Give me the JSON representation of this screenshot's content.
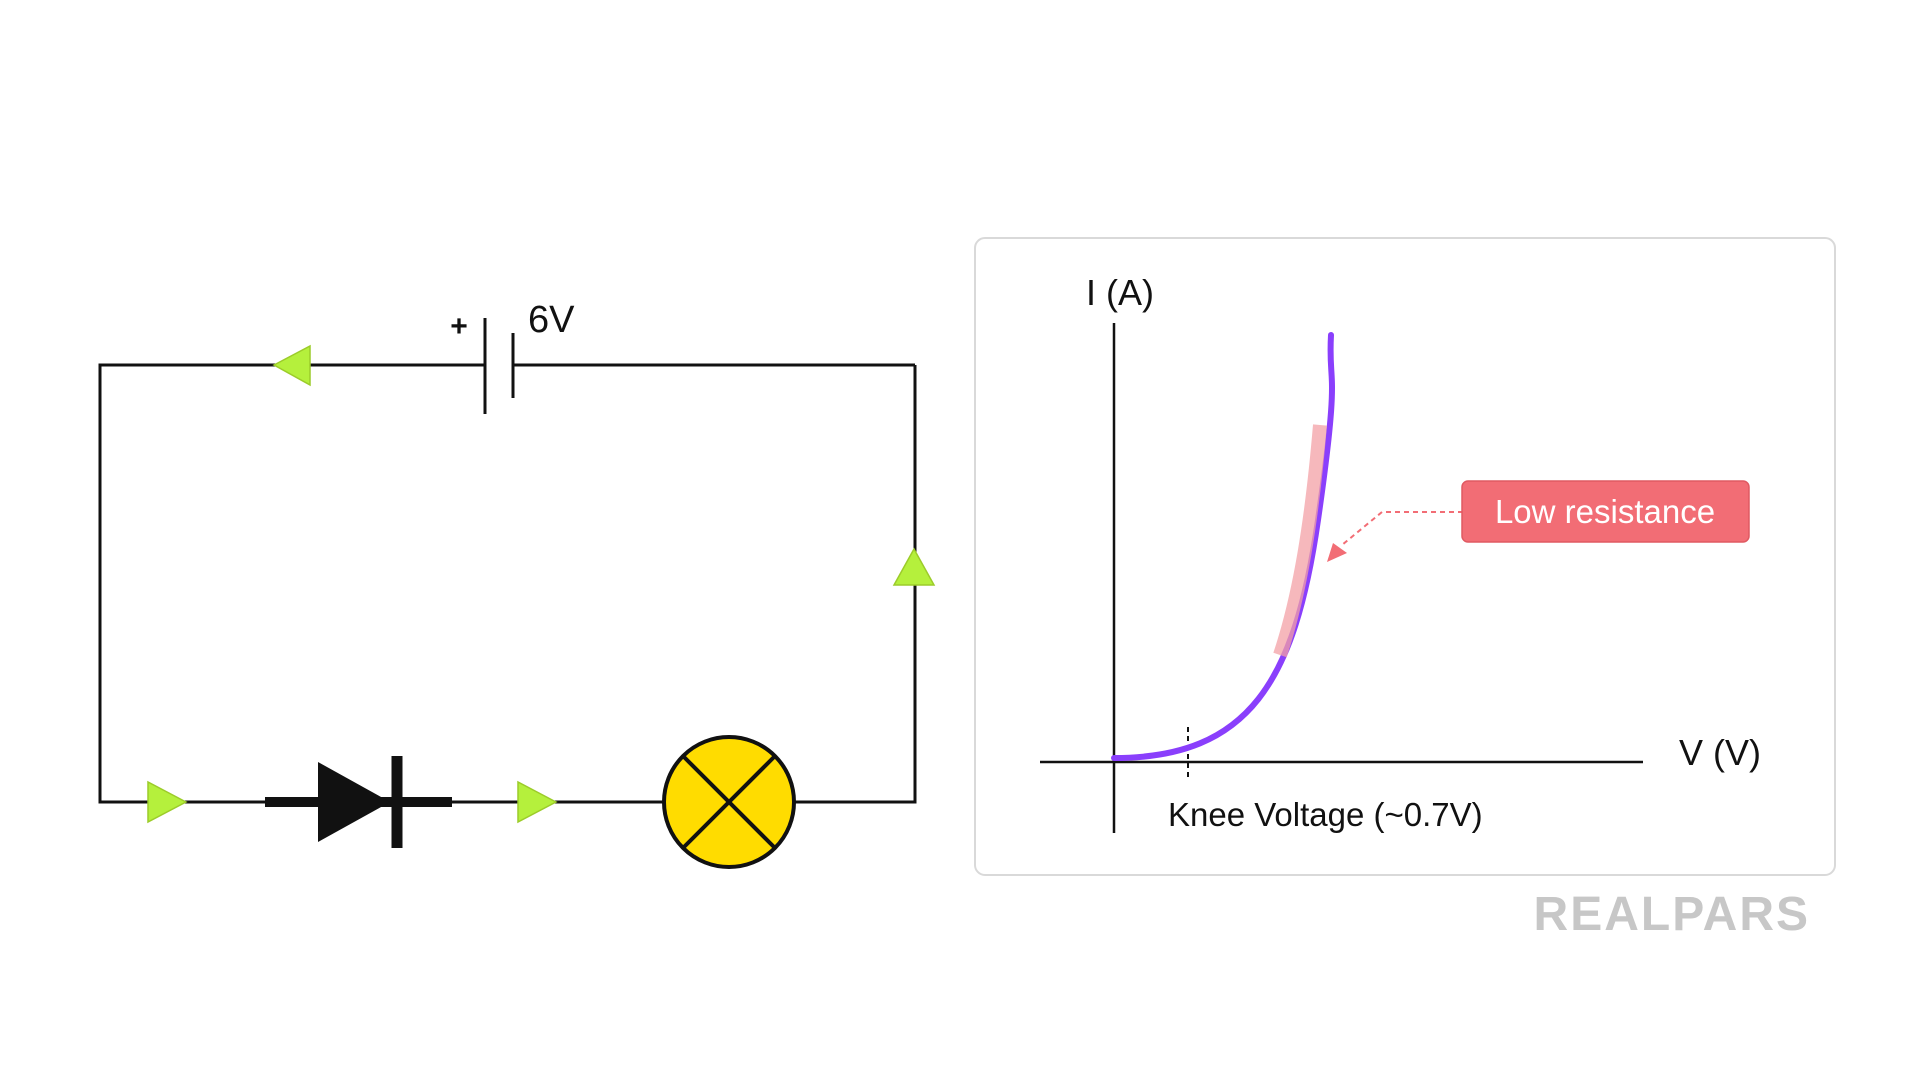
{
  "circuit": {
    "battery_voltage": "6V",
    "battery_polarity": "+"
  },
  "graph": {
    "y_axis_label": "I (A)",
    "x_axis_label": "V (V)",
    "knee_label": "Knee Voltage (~0.7V)",
    "callout_label": "Low resistance"
  },
  "logo": {
    "text": "REALPARS"
  },
  "colors": {
    "curve": "#8a3ffc",
    "highlight": "#f3a0a6",
    "callout_bg": "#f26d75",
    "callout_text": "#ffffff",
    "flow_arrow": "#b5f03c",
    "bulb": "#ffdc00",
    "logo": "#c7c7c7"
  }
}
